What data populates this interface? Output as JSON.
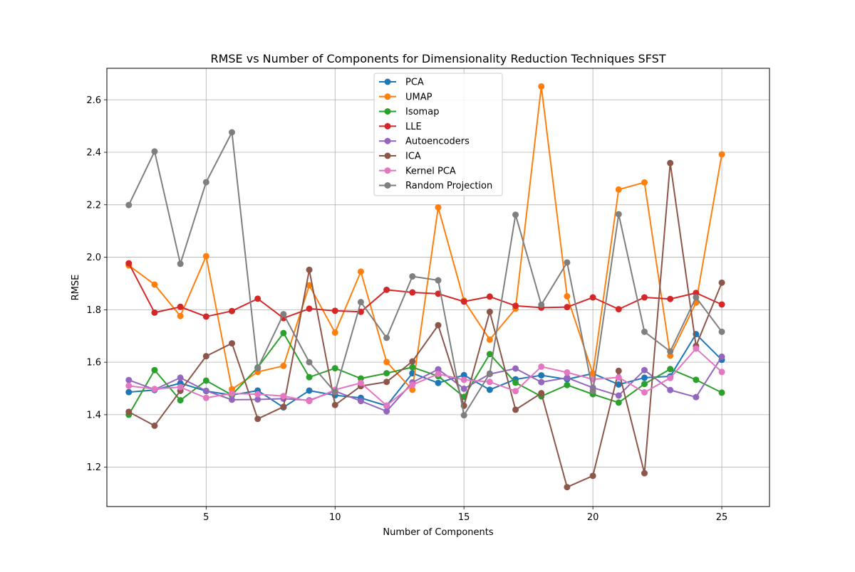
{
  "chart_data": {
    "type": "line",
    "title": "RMSE vs Number of Components for Dimensionality Reduction Techniques SFST",
    "xlabel": "Number of Components",
    "ylabel": "RMSE",
    "xlim": [
      1.15,
      26.85
    ],
    "ylim": [
      1.05,
      2.72
    ],
    "xticks": [
      5,
      10,
      15,
      20,
      25
    ],
    "yticks": [
      1.2,
      1.4,
      1.6,
      1.8,
      2.0,
      2.2,
      2.4,
      2.6
    ],
    "xtick_labels": [
      "5",
      "10",
      "15",
      "20",
      "25"
    ],
    "ytick_labels": [
      "1.2",
      "1.4",
      "1.6",
      "1.8",
      "2.0",
      "2.2",
      "2.4",
      "2.6"
    ],
    "grid": true,
    "legend_position": "upper center",
    "x": [
      2,
      3,
      4,
      5,
      6,
      7,
      8,
      9,
      10,
      11,
      12,
      13,
      14,
      15,
      16,
      17,
      18,
      19,
      20,
      21,
      22,
      23,
      24,
      25
    ],
    "series": [
      {
        "name": "PCA",
        "color": "#1f77b4",
        "values": [
          1.486,
          1.494,
          1.52,
          1.49,
          1.475,
          1.492,
          1.428,
          1.492,
          1.474,
          1.464,
          1.434,
          1.558,
          1.521,
          1.551,
          1.495,
          1.535,
          1.55,
          1.535,
          1.557,
          1.515,
          1.541,
          1.546,
          1.707,
          1.609
        ]
      },
      {
        "name": "UMAP",
        "color": "#ff7f0e",
        "values": [
          1.969,
          1.896,
          1.776,
          2.004,
          1.497,
          1.563,
          1.586,
          1.893,
          1.713,
          1.945,
          1.601,
          1.495,
          2.19,
          1.835,
          1.686,
          1.804,
          2.651,
          1.851,
          1.556,
          2.258,
          2.285,
          1.625,
          1.827,
          2.392
        ]
      },
      {
        "name": "Isomap",
        "color": "#2ca02c",
        "values": [
          1.4,
          1.57,
          1.455,
          1.53,
          1.475,
          1.58,
          1.711,
          1.543,
          1.577,
          1.538,
          1.558,
          1.581,
          1.547,
          1.468,
          1.631,
          1.522,
          1.47,
          1.513,
          1.478,
          1.446,
          1.517,
          1.574,
          1.533,
          1.484
        ]
      },
      {
        "name": "LLE",
        "color": "#d62728",
        "values": [
          1.977,
          1.789,
          1.811,
          1.774,
          1.795,
          1.842,
          1.768,
          1.804,
          1.796,
          1.792,
          1.876,
          1.866,
          1.861,
          1.831,
          1.85,
          1.815,
          1.808,
          1.81,
          1.847,
          1.802,
          1.847,
          1.841,
          1.864,
          1.82
        ]
      },
      {
        "name": "Autoencoders",
        "color": "#9467bd",
        "values": [
          1.532,
          1.496,
          1.541,
          1.491,
          1.457,
          1.458,
          1.461,
          1.455,
          1.49,
          1.452,
          1.413,
          1.523,
          1.573,
          1.499,
          1.555,
          1.576,
          1.524,
          1.541,
          1.503,
          1.473,
          1.57,
          1.494,
          1.467,
          1.621
        ]
      },
      {
        "name": "ICA",
        "color": "#8c564b",
        "values": [
          1.411,
          1.358,
          1.491,
          1.623,
          1.672,
          1.384,
          1.43,
          1.952,
          1.437,
          1.509,
          1.525,
          1.603,
          1.741,
          1.434,
          1.792,
          1.419,
          1.482,
          1.124,
          1.167,
          1.567,
          1.177,
          2.359,
          1.662,
          1.903
        ]
      },
      {
        "name": "Kernel PCA",
        "color": "#e377c2",
        "values": [
          1.51,
          1.498,
          1.505,
          1.464,
          1.481,
          1.478,
          1.471,
          1.452,
          1.495,
          1.521,
          1.435,
          1.514,
          1.555,
          1.533,
          1.525,
          1.49,
          1.583,
          1.561,
          1.535,
          1.542,
          1.485,
          1.54,
          1.652,
          1.563
        ]
      },
      {
        "name": "Random Projection",
        "color": "#7f7f7f",
        "values": [
          2.199,
          2.403,
          1.975,
          2.286,
          2.476,
          1.577,
          1.783,
          1.6,
          1.486,
          1.829,
          1.693,
          1.927,
          1.912,
          1.398,
          1.557,
          2.162,
          1.819,
          1.98,
          1.49,
          2.164,
          1.716,
          1.641,
          1.847,
          1.716
        ]
      }
    ]
  }
}
